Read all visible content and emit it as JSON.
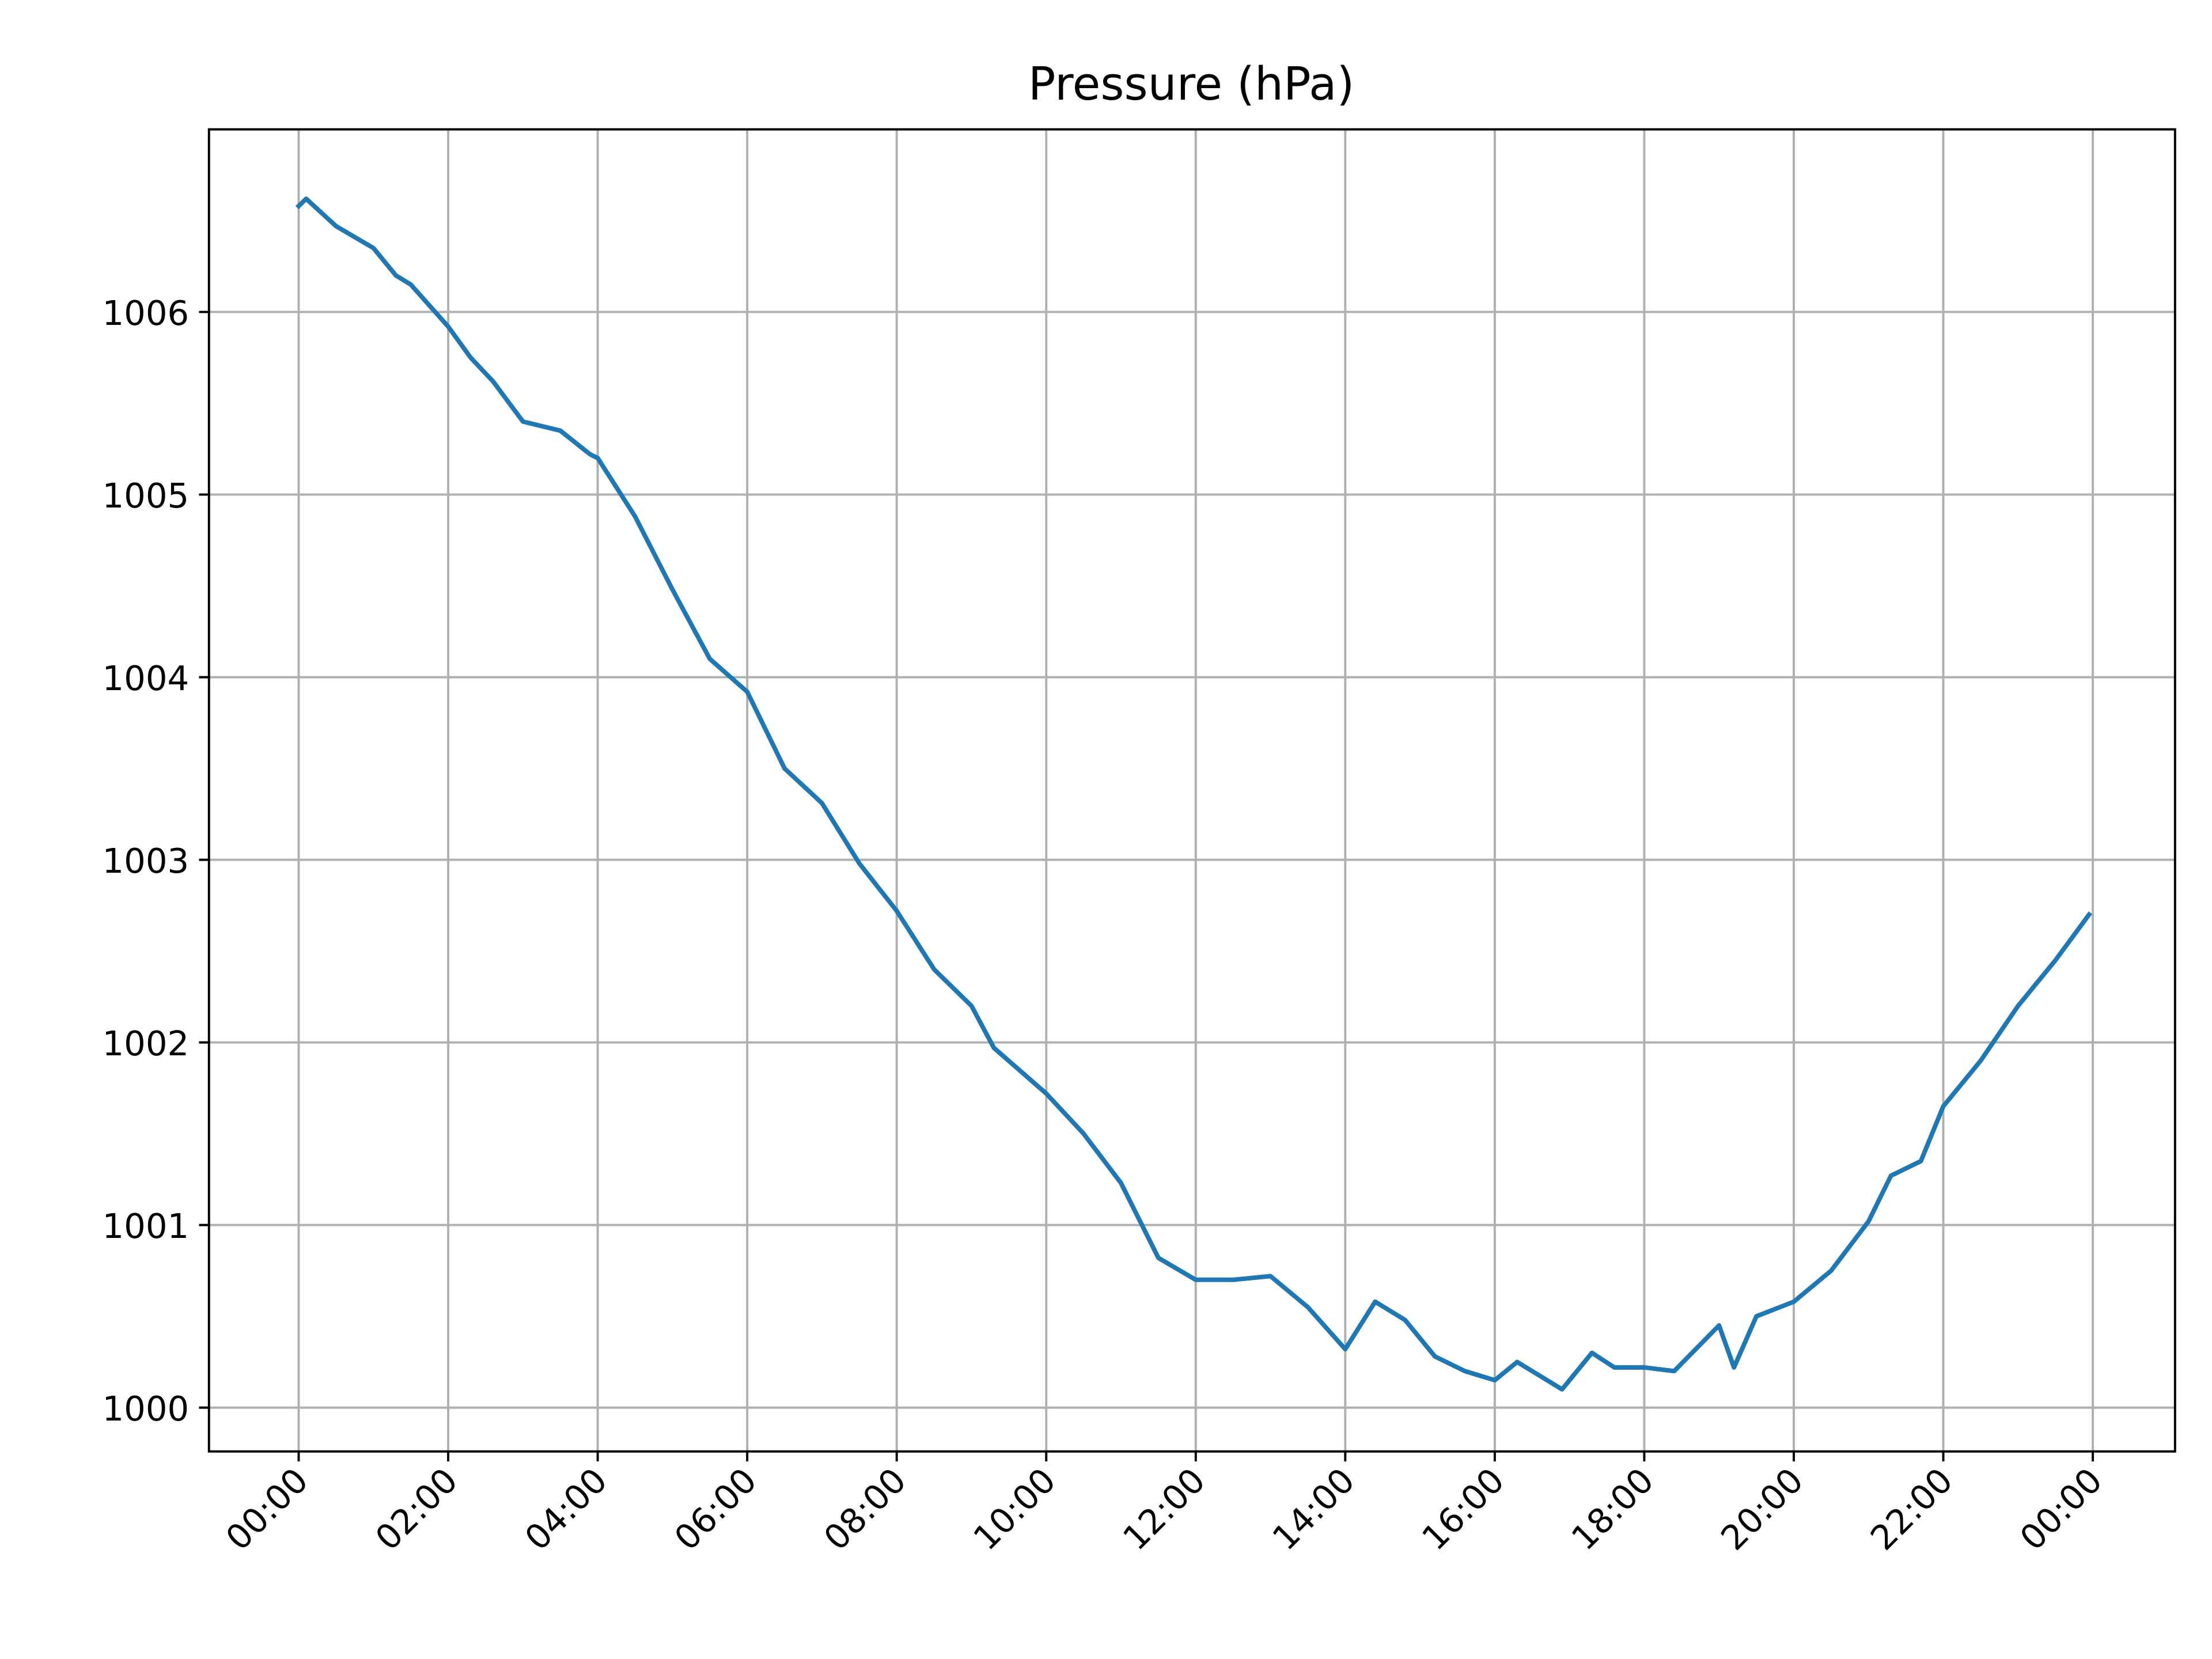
{
  "chart_data": {
    "type": "line",
    "title": "Pressure (hPa)",
    "x": [
      0,
      0.1,
      0.5,
      1.0,
      1.3,
      1.5,
      2.0,
      2.3,
      2.6,
      3.0,
      3.5,
      3.9,
      4.0,
      4.5,
      5.0,
      5.5,
      6.0,
      6.5,
      7.0,
      7.5,
      8.0,
      8.5,
      9.0,
      9.3,
      10.0,
      10.5,
      11.0,
      11.5,
      12.0,
      12.5,
      13.0,
      13.5,
      14.0,
      14.4,
      14.8,
      15.2,
      15.6,
      16.0,
      16.3,
      16.9,
      17.3,
      17.6,
      18.0,
      18.4,
      19.0,
      19.2,
      19.5,
      20.0,
      20.5,
      21.0,
      21.3,
      21.7,
      22.0,
      22.5,
      23.0,
      23.5,
      23.95
    ],
    "series": [
      {
        "name": "Pressure",
        "color": "#1f77b4",
        "values": [
          1006.58,
          1006.62,
          1006.47,
          1006.35,
          1006.2,
          1006.15,
          1005.92,
          1005.75,
          1005.62,
          1005.4,
          1005.35,
          1005.22,
          1005.2,
          1004.88,
          1004.48,
          1004.1,
          1003.92,
          1003.5,
          1003.31,
          1002.98,
          1002.72,
          1002.4,
          1002.2,
          1001.97,
          1001.72,
          1001.5,
          1001.23,
          1000.82,
          1000.7,
          1000.7,
          1000.72,
          1000.55,
          1000.32,
          1000.58,
          1000.48,
          1000.28,
          1000.2,
          1000.15,
          1000.25,
          1000.1,
          1000.3,
          1000.22,
          1000.22,
          1000.2,
          1000.45,
          1000.22,
          1000.5,
          1000.58,
          1000.75,
          1001.02,
          1001.27,
          1001.35,
          1001.65,
          1001.9,
          1002.2,
          1002.45,
          1002.7
        ]
      }
    ],
    "xlim": [
      -1.2,
      25.1
    ],
    "ylim": [
      999.76,
      1007.0
    ],
    "xticks": [
      {
        "value": 0,
        "label": "00:00"
      },
      {
        "value": 2,
        "label": "02:00"
      },
      {
        "value": 4,
        "label": "04:00"
      },
      {
        "value": 6,
        "label": "06:00"
      },
      {
        "value": 8,
        "label": "08:00"
      },
      {
        "value": 10,
        "label": "10:00"
      },
      {
        "value": 12,
        "label": "12:00"
      },
      {
        "value": 14,
        "label": "14:00"
      },
      {
        "value": 16,
        "label": "16:00"
      },
      {
        "value": 18,
        "label": "18:00"
      },
      {
        "value": 20,
        "label": "20:00"
      },
      {
        "value": 22,
        "label": "22:00"
      },
      {
        "value": 24,
        "label": "00:00"
      }
    ],
    "yticks": [
      1000,
      1001,
      1002,
      1003,
      1004,
      1005,
      1006
    ],
    "grid": true
  }
}
